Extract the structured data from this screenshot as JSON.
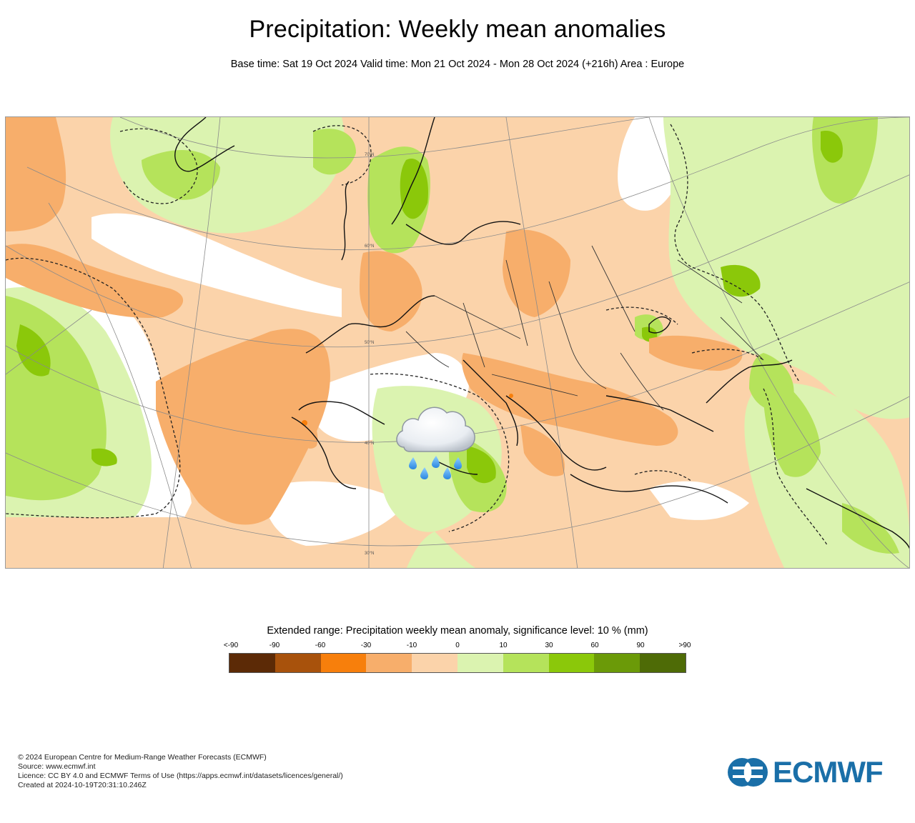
{
  "header": {
    "title": "Precipitation: Weekly mean anomalies",
    "subtitle": "Base time: Sat 19 Oct 2024 Valid time: Mon 21 Oct 2024 - Mon 28 Oct 2024 (+216h) Area : Europe"
  },
  "map": {
    "graticule_labels": [
      "70°N",
      "60°N",
      "50°N",
      "40°N",
      "30°N"
    ],
    "overlay_icon": "rain-cloud-icon"
  },
  "legend": {
    "title": "Extended range: Precipitation weekly mean anomaly, significance level: 10 % (mm)",
    "ticks": [
      "<-90",
      "-90",
      "-60",
      "-30",
      "-10",
      "0",
      "10",
      "30",
      "60",
      "90",
      ">90"
    ],
    "colors": [
      "#5c2a06",
      "#a8520c",
      "#f77f0c",
      "#f7ae6b",
      "#fbd3aa",
      "#dbf3b0",
      "#b5e35b",
      "#8bc80a",
      "#6b9a08",
      "#4e6b06"
    ]
  },
  "footer": {
    "lines": [
      "© 2024 European Centre for Medium-Range Weather Forecasts (ECMWF)",
      "Source: www.ecmwf.int",
      "Licence: CC BY 4.0 and ECMWF Terms of Use (https://apps.ecmwf.int/datasets/licences/general/)",
      "Created at 2024-10-19T20:31:10.246Z"
    ]
  },
  "logo": {
    "text": "ECMWF",
    "color": "#1a6fa8"
  }
}
